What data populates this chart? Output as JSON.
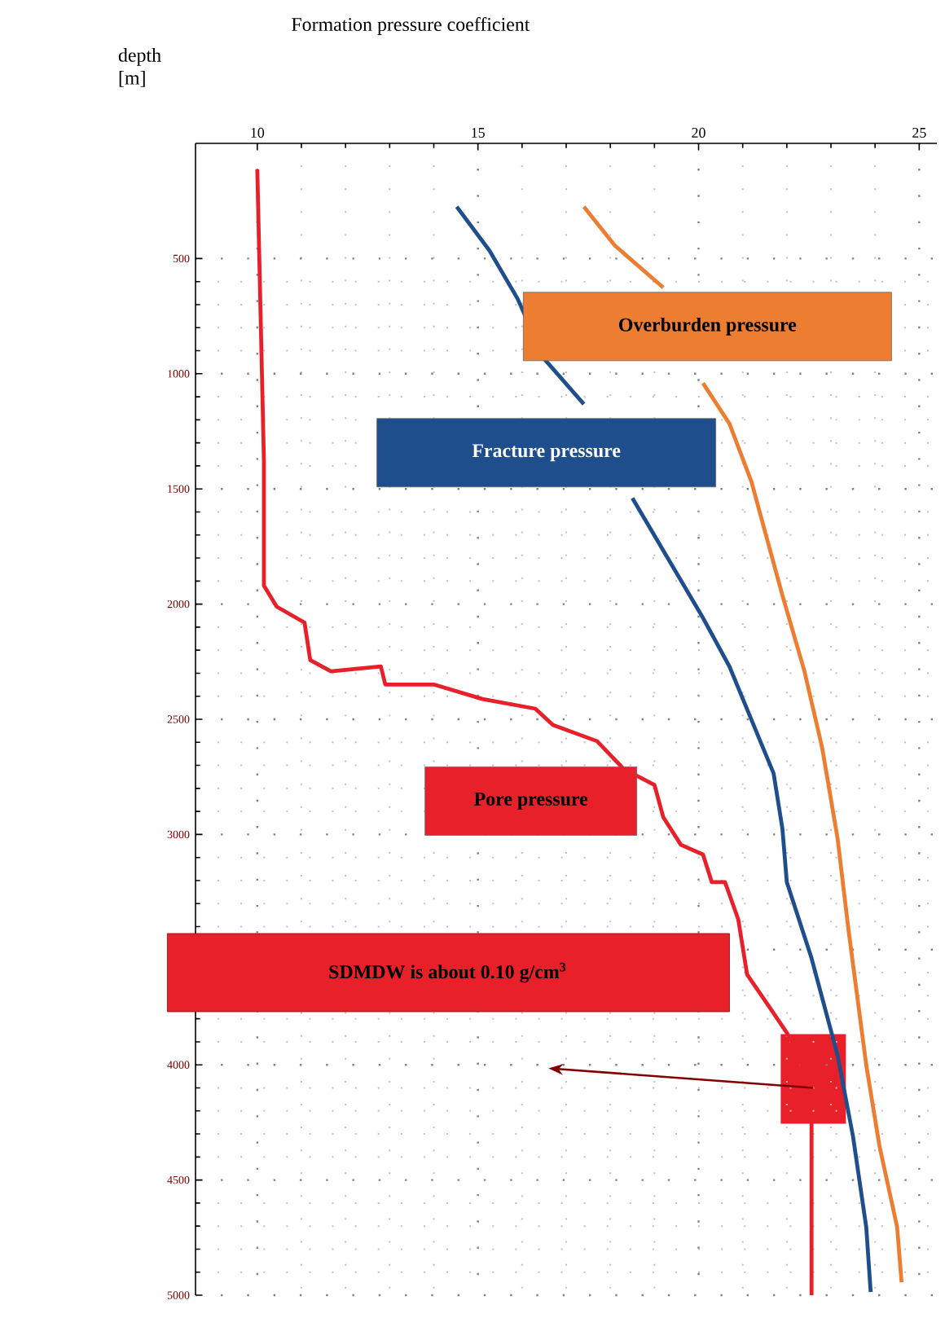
{
  "chart_data": {
    "type": "line",
    "xlabel": "Formation pressure coefficient",
    "ylabel": "depth [m]",
    "xlim": [
      8.6,
      25.4
    ],
    "xticks": [
      10,
      15,
      20,
      25
    ],
    "ylim": [
      5000,
      0
    ],
    "yticks": [
      500,
      1000,
      1500,
      2000,
      2500,
      3000,
      3500,
      4000,
      4500,
      5000
    ],
    "grid": true,
    "series": [
      {
        "name": "Pore pressure",
        "color": "#e8202a",
        "x": [
          10,
          10.15,
          10.15,
          10.44,
          11.07,
          11.2,
          11.67,
          12.8,
          12.9,
          14.0,
          15.1,
          16.3,
          16.7,
          17.7,
          18.3,
          19.0,
          19.2,
          19.6,
          20.1,
          20.3,
          20.6,
          20.9,
          21.1,
          21.6,
          22.0,
          22.3,
          22.56,
          22.56
        ],
        "values": [
          113,
          1378,
          1920,
          2011,
          2080,
          2243,
          2292,
          2271,
          2349,
          2349,
          2412,
          2454,
          2525,
          2595,
          2715,
          2785,
          2925,
          3045,
          3087,
          3207,
          3207,
          3369,
          3608,
          3748,
          3861,
          3959,
          4250,
          5000
        ]
      },
      {
        "name": "Fracture pressure",
        "color": "#1f4e8c",
        "x": [
          14.52,
          15.26,
          15.9,
          16.5,
          17.4,
          null,
          18.5,
          19.3,
          20.1,
          20.7,
          21.2,
          21.7,
          21.9,
          22.0,
          22.56,
          23.15,
          23.5,
          23.8,
          23.9
        ],
        "values": [
          275,
          465,
          675,
          935,
          1132,
          null,
          1540,
          1800,
          2060,
          2271,
          2503,
          2735,
          2975,
          3207,
          3537,
          3959,
          4311,
          4705,
          4986
        ]
      },
      {
        "name": "Overburden pressure",
        "color": "#ed7d31",
        "x": [
          17.4,
          18.1,
          19.2,
          null,
          20.1,
          20.7,
          21.2,
          21.4,
          21.9,
          22.4,
          22.8,
          23.15,
          23.4,
          23.8,
          24.1,
          24.5,
          24.6
        ],
        "values": [
          275,
          443,
          626,
          null,
          1041,
          1217,
          1470,
          1611,
          1962,
          2292,
          2623,
          3017,
          3418,
          4001,
          4353,
          4705,
          4944
        ]
      }
    ],
    "annotations": [
      "SDMDW is about 0.10 g/cm$^{3}$"
    ]
  }
}
